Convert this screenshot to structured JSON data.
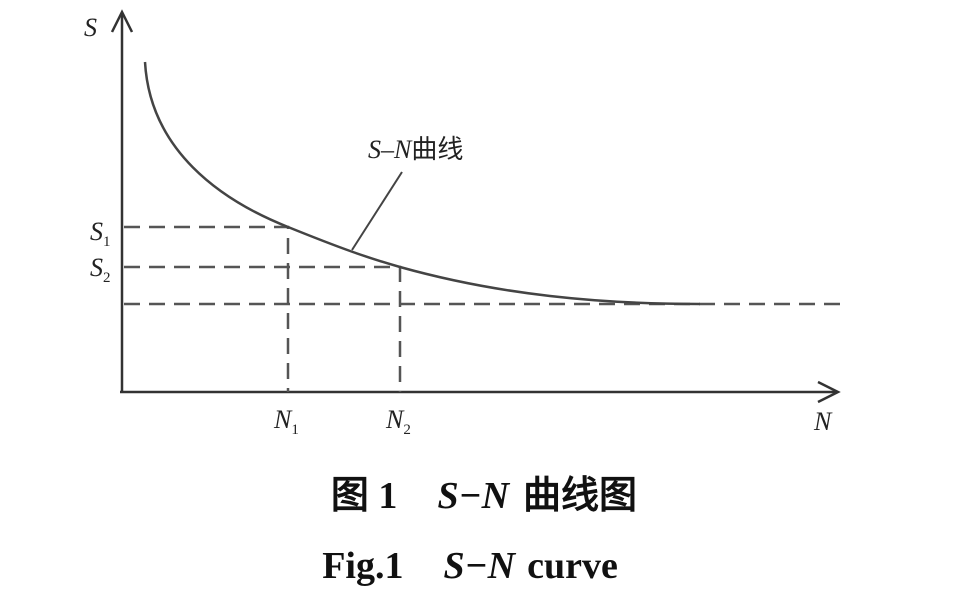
{
  "axes": {
    "y": {
      "letter": "S"
    },
    "x": {
      "letter": "N"
    }
  },
  "levels": [
    {
      "stress": {
        "letter": "S",
        "sub": "1"
      },
      "life": {
        "letter": "N",
        "sub": "1"
      }
    },
    {
      "stress": {
        "letter": "S",
        "sub": "2"
      },
      "life": {
        "letter": "N",
        "sub": "2"
      }
    }
  ],
  "curve_label": {
    "italic": "S–N",
    "rest": "曲线"
  },
  "caption": {
    "cn": {
      "label": "图 1",
      "italic": "S−N",
      "rest": "曲线图"
    },
    "en": {
      "label": "Fig.1",
      "italic": "S−N",
      "rest": "curve"
    }
  }
}
